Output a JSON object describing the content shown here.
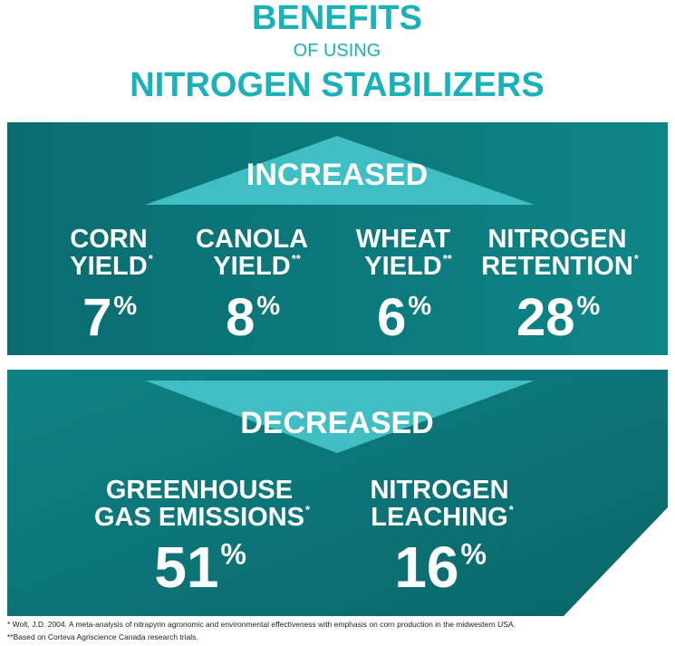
{
  "header": {
    "line1": "BENEFITS",
    "line2": "OF USING",
    "line3": "NITROGEN STABILIZERS"
  },
  "sections": [
    {
      "heading": "INCREASED",
      "items": [
        {
          "label": [
            "CORN",
            "YIELD"
          ],
          "note": "*",
          "value": "7",
          "unit": "%"
        },
        {
          "label": [
            "CANOLA",
            "YIELD"
          ],
          "note": "**",
          "value": "8",
          "unit": "%"
        },
        {
          "label": [
            "WHEAT",
            "YIELD"
          ],
          "note": "**",
          "value": "6",
          "unit": "%"
        },
        {
          "label": [
            "NITROGEN",
            "RETENTION"
          ],
          "note": "*",
          "value": "28",
          "unit": "%"
        }
      ]
    },
    {
      "heading": "DECREASED",
      "items": [
        {
          "label": [
            "GREENHOUSE",
            "GAS EMISSIONS"
          ],
          "note": "*",
          "value": "51",
          "unit": "%"
        },
        {
          "label": [
            "NITROGEN",
            "LEACHING"
          ],
          "note": "*",
          "value": "16",
          "unit": "%"
        }
      ]
    }
  ],
  "footnotes": [
    "* Wolt, J.D. 2004. A meta-analysis of nitrapyrin agronomic and environmental effectiveness with emphasis on corn production in the midwestern USA.",
    "**Based on Corteva Agriscience Canada research trials."
  ]
}
